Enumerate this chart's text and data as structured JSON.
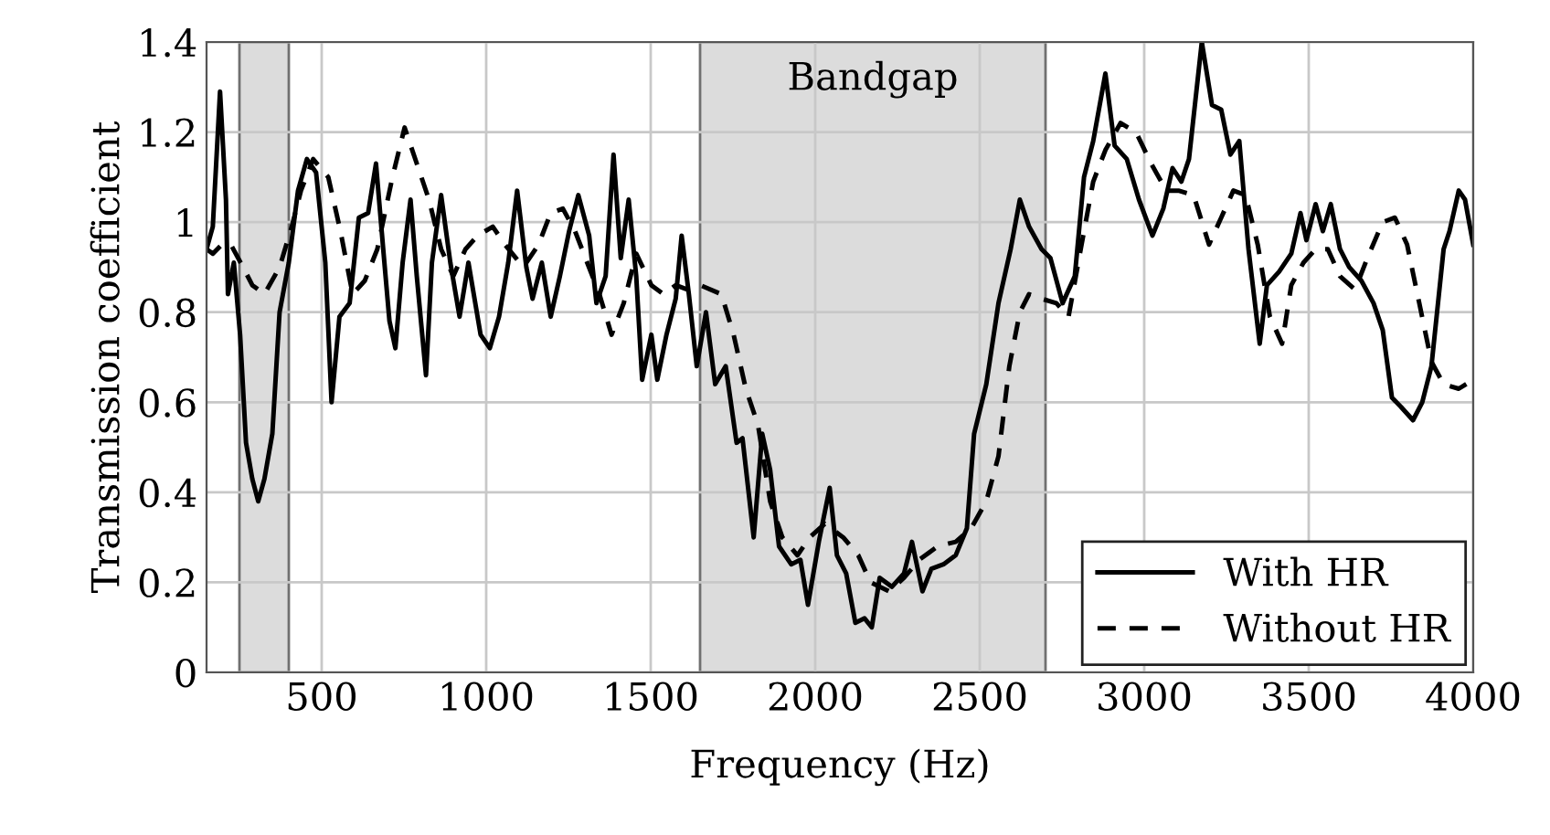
{
  "chart_data": {
    "type": "line",
    "xlabel": "Frequency (Hz)",
    "ylabel": "Transmission coefficient",
    "xlim": [
      150,
      4000
    ],
    "xticks": [
      500,
      1000,
      1500,
      2000,
      2500,
      3000,
      3500,
      4000
    ],
    "ylim": [
      0,
      1.4
    ],
    "yticks": [
      0,
      0.2,
      0.4,
      0.6,
      0.8,
      1,
      1.2,
      1.4
    ],
    "grid": true,
    "legend": "bottom right",
    "bands": [
      {
        "axis": "x",
        "from": 250,
        "to": 400,
        "color": "#dcdcdc"
      },
      {
        "axis": "x",
        "from": 1650,
        "to": 2700,
        "label": "Bandgap",
        "color": "#dcdcdc"
      }
    ],
    "series": [
      {
        "name": "With HR",
        "color": "#000000",
        "line_style": "solid",
        "x": [
          150,
          169,
          191,
          209,
          215,
          233,
          252,
          270,
          289,
          307,
          326,
          350,
          372,
          400,
          428,
          455,
          483,
          511,
          530,
          554,
          585,
          613,
          641,
          665,
          687,
          706,
          724,
          746,
          770,
          789,
          817,
          835,
          863,
          891,
          919,
          946,
          983,
          1011,
          1039,
          1067,
          1094,
          1122,
          1141,
          1169,
          1196,
          1224,
          1252,
          1280,
          1313,
          1335,
          1363,
          1387,
          1409,
          1433,
          1456,
          1474,
          1502,
          1520,
          1548,
          1576,
          1594,
          1616,
          1640,
          1668,
          1696,
          1728,
          1761,
          1779,
          1813,
          1839,
          1863,
          1890,
          1927,
          1955,
          1978,
          2011,
          2044,
          2066,
          2094,
          2122,
          2150,
          2172,
          2196,
          2233,
          2270,
          2294,
          2326,
          2353,
          2390,
          2427,
          2461,
          2483,
          2520,
          2557,
          2594,
          2622,
          2650,
          2688,
          2715,
          2752,
          2789,
          2817,
          2845,
          2882,
          2910,
          2947,
          2984,
          3025,
          3058,
          3086,
          3113,
          3136,
          3175,
          3206,
          3234,
          3262,
          3289,
          3317,
          3351,
          3373,
          3410,
          3447,
          3475,
          3493,
          3521,
          3543,
          3567,
          3595,
          3623,
          3660,
          3697,
          3725,
          3753,
          3780,
          3817,
          3845,
          3873,
          3910,
          3928,
          3956,
          3975,
          4000
        ],
        "values": [
          0.94,
          0.99,
          1.29,
          1.05,
          0.84,
          0.91,
          0.75,
          0.51,
          0.43,
          0.38,
          0.43,
          0.53,
          0.8,
          0.91,
          1.07,
          1.14,
          1.11,
          0.91,
          0.6,
          0.79,
          0.82,
          1.01,
          1.02,
          1.13,
          0.94,
          0.78,
          0.72,
          0.91,
          1.05,
          0.88,
          0.66,
          0.91,
          1.06,
          0.91,
          0.79,
          0.91,
          0.75,
          0.72,
          0.79,
          0.91,
          1.07,
          0.9,
          0.83,
          0.91,
          0.79,
          0.88,
          0.98,
          1.06,
          0.97,
          0.82,
          0.88,
          1.15,
          0.92,
          1.05,
          0.88,
          0.65,
          0.75,
          0.65,
          0.75,
          0.83,
          0.97,
          0.84,
          0.68,
          0.8,
          0.64,
          0.68,
          0.51,
          0.52,
          0.3,
          0.53,
          0.45,
          0.28,
          0.24,
          0.25,
          0.15,
          0.29,
          0.41,
          0.26,
          0.22,
          0.11,
          0.12,
          0.1,
          0.21,
          0.19,
          0.22,
          0.29,
          0.18,
          0.23,
          0.24,
          0.26,
          0.32,
          0.53,
          0.64,
          0.82,
          0.94,
          1.05,
          0.99,
          0.94,
          0.92,
          0.82,
          0.88,
          1.1,
          1.18,
          1.33,
          1.17,
          1.14,
          1.05,
          0.97,
          1.03,
          1.12,
          1.09,
          1.14,
          1.4,
          1.26,
          1.25,
          1.15,
          1.18,
          0.94,
          0.73,
          0.86,
          0.89,
          0.93,
          1.02,
          0.96,
          1.04,
          0.98,
          1.04,
          0.94,
          0.9,
          0.87,
          0.82,
          0.76,
          0.61,
          0.59,
          0.56,
          0.6,
          0.68,
          0.94,
          0.98,
          1.07,
          1.05,
          0.95
        ]
      },
      {
        "name": "Without HR",
        "color": "#000000",
        "line_style": "dashed",
        "x": [
          150,
          169,
          196,
          224,
          261,
          289,
          326,
          372,
          409,
          437,
          474,
          520,
          557,
          594,
          631,
          669,
          715,
          752,
          789,
          826,
          863,
          900,
          937,
          974,
          1020,
          1057,
          1113,
          1159,
          1196,
          1233,
          1270,
          1307,
          1344,
          1381,
          1418,
          1456,
          1502,
          1539,
          1576,
          1613,
          1650,
          1715,
          1752,
          1789,
          1826,
          1863,
          1900,
          1946,
          1983,
          2029,
          2085,
          2131,
          2168,
          2224,
          2270,
          2316,
          2372,
          2427,
          2474,
          2520,
          2557,
          2590,
          2622,
          2650,
          2687,
          2733,
          2770,
          2807,
          2845,
          2882,
          2928,
          2975,
          3021,
          3067,
          3104,
          3150,
          3197,
          3234,
          3271,
          3308,
          3345,
          3382,
          3419,
          3447,
          3484,
          3521,
          3558,
          3595,
          3641,
          3678,
          3725,
          3762,
          3799,
          3836,
          3873,
          3910,
          3956,
          4000
        ],
        "values": [
          0.94,
          0.93,
          0.95,
          0.95,
          0.9,
          0.86,
          0.84,
          0.9,
          0.99,
          1.07,
          1.14,
          1.1,
          0.98,
          0.84,
          0.87,
          0.94,
          1.1,
          1.21,
          1.13,
          1.05,
          0.94,
          0.88,
          0.94,
          0.97,
          0.99,
          0.95,
          0.9,
          0.95,
          1.02,
          1.03,
          0.98,
          0.91,
          0.84,
          0.75,
          0.82,
          0.93,
          0.86,
          0.84,
          0.86,
          0.85,
          0.86,
          0.84,
          0.75,
          0.63,
          0.55,
          0.38,
          0.3,
          0.26,
          0.3,
          0.33,
          0.3,
          0.26,
          0.2,
          0.18,
          0.21,
          0.25,
          0.28,
          0.29,
          0.32,
          0.38,
          0.48,
          0.68,
          0.8,
          0.84,
          0.83,
          0.82,
          0.79,
          0.94,
          1.09,
          1.16,
          1.22,
          1.2,
          1.13,
          1.07,
          1.07,
          1.06,
          0.95,
          1.01,
          1.07,
          1.06,
          0.95,
          0.79,
          0.73,
          0.86,
          0.91,
          0.94,
          0.94,
          0.88,
          0.85,
          0.92,
          1.0,
          1.01,
          0.95,
          0.82,
          0.69,
          0.64,
          0.63,
          0.65
        ]
      }
    ]
  }
}
